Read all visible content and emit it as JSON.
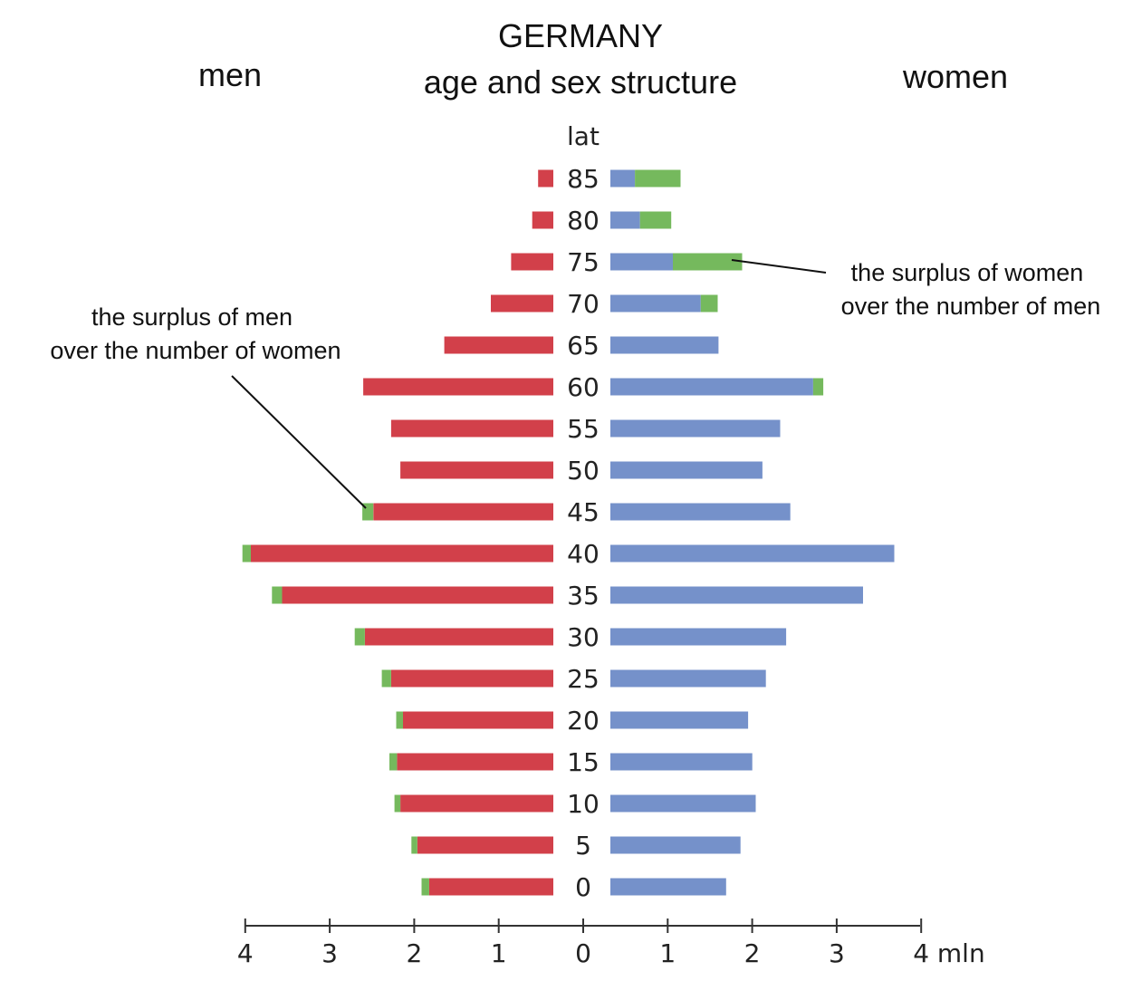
{
  "chart_data": {
    "type": "bar",
    "orientation": "horizontal-population-pyramid",
    "title": "GERMANY",
    "subtitle": "age and sex structure",
    "left_label": "men",
    "right_label": "women",
    "age_axis_label": "lat",
    "x_unit_label": "4 mln",
    "x_ticks": [
      "4",
      "3",
      "2",
      "1",
      "0",
      "1",
      "2",
      "3"
    ],
    "xlim": [
      0,
      4
    ],
    "categories": [
      "85",
      "80",
      "75",
      "70",
      "65",
      "60",
      "55",
      "50",
      "45",
      "40",
      "35",
      "30",
      "25",
      "20",
      "15",
      "10",
      "5",
      "0"
    ],
    "series": [
      {
        "name": "men",
        "side": "left",
        "color": "#d2404a",
        "values": [
          0.18,
          0.25,
          0.5,
          0.74,
          1.29,
          2.25,
          1.92,
          1.81,
          2.13,
          3.58,
          3.21,
          2.23,
          1.92,
          1.78,
          1.85,
          1.81,
          1.61,
          1.47
        ]
      },
      {
        "name": "surplus of men",
        "side": "left",
        "stack_on": "men",
        "color": "#75b95d",
        "values": [
          0,
          0,
          0,
          0,
          0,
          0,
          0,
          0,
          0.13,
          0.1,
          0.12,
          0.12,
          0.11,
          0.08,
          0.09,
          0.07,
          0.07,
          0.09
        ]
      },
      {
        "name": "women",
        "side": "right",
        "color": "#7591ca",
        "values": [
          0.29,
          0.35,
          0.74,
          1.07,
          1.28,
          2.4,
          2.01,
          1.8,
          2.13,
          3.36,
          2.99,
          2.08,
          1.84,
          1.63,
          1.68,
          1.72,
          1.54,
          1.37
        ]
      },
      {
        "name": "surplus of women",
        "side": "right",
        "stack_on": "women",
        "color": "#75b95d",
        "values": [
          0.54,
          0.37,
          0.82,
          0.2,
          0,
          0.12,
          0,
          0,
          0,
          0,
          0,
          0,
          0,
          0,
          0,
          0,
          0,
          0
        ]
      }
    ],
    "annotations": [
      {
        "lines": [
          "the surplus of women",
          "over the number of men"
        ],
        "target": "75"
      },
      {
        "lines": [
          "the surplus of men",
          "over the number of women"
        ],
        "target": "45"
      }
    ]
  }
}
